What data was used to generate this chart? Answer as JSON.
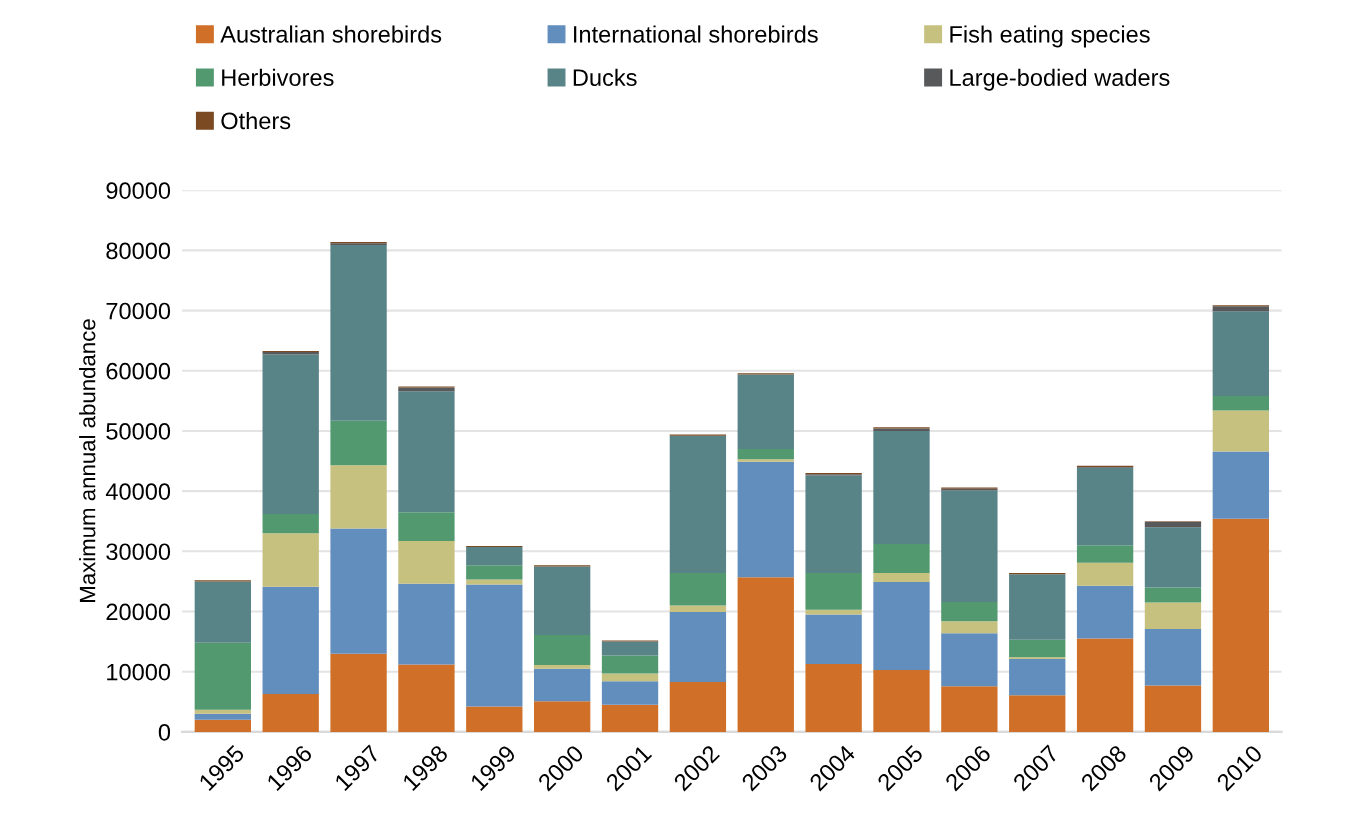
{
  "chart_data": {
    "type": "bar",
    "stacked": true,
    "ylabel": "Maximum annual abundance",
    "categories": [
      "1995",
      "1996",
      "1997",
      "1998",
      "1999",
      "2000",
      "2001",
      "2002",
      "2003",
      "2004",
      "2005",
      "2006",
      "2007",
      "2008",
      "2009",
      "2010"
    ],
    "series": [
      {
        "name": "Australian shorebirds",
        "color": "#d07028",
        "values": [
          2000,
          6300,
          13000,
          11200,
          4200,
          5100,
          4500,
          8300,
          25700,
          11300,
          10300,
          7600,
          6100,
          15500,
          7700,
          35400
        ]
      },
      {
        "name": "International shorebirds",
        "color": "#628ebe",
        "values": [
          1000,
          17800,
          20800,
          13400,
          20300,
          5400,
          3900,
          11600,
          19200,
          8200,
          14600,
          8800,
          6000,
          8800,
          9400,
          11200
        ]
      },
      {
        "name": "Fish eating species",
        "color": "#c7c180",
        "values": [
          700,
          8900,
          10500,
          7100,
          800,
          600,
          1300,
          1100,
          400,
          800,
          1500,
          2000,
          300,
          3800,
          4400,
          6800
        ]
      },
      {
        "name": "Herbivores",
        "color": "#539970",
        "values": [
          11100,
          3200,
          7400,
          4800,
          2400,
          5000,
          3000,
          5400,
          1700,
          6100,
          4800,
          3200,
          2900,
          2900,
          2500,
          2400
        ]
      },
      {
        "name": "Ducks",
        "color": "#588387",
        "values": [
          10200,
          26500,
          29200,
          20100,
          3000,
          11400,
          2300,
          22800,
          12400,
          16200,
          18800,
          18500,
          10900,
          12900,
          10000,
          14100
        ]
      },
      {
        "name": "Large-bodied waders",
        "color": "#58595b",
        "values": [
          null,
          400,
          300,
          600,
          0,
          0,
          0,
          0,
          0,
          200,
          400,
          300,
          0,
          100,
          900,
          800
        ]
      },
      {
        "name": "Others",
        "color": "#7b4a23",
        "values": [
          200,
          200,
          200,
          200,
          200,
          200,
          200,
          200,
          200,
          200,
          200,
          200,
          200,
          200,
          100,
          200
        ]
      }
    ],
    "ylim": [
      0,
      90000
    ],
    "yticks": [
      0,
      10000,
      20000,
      30000,
      40000,
      50000,
      60000,
      70000,
      80000,
      90000
    ],
    "grid": "y",
    "legend": "top"
  }
}
